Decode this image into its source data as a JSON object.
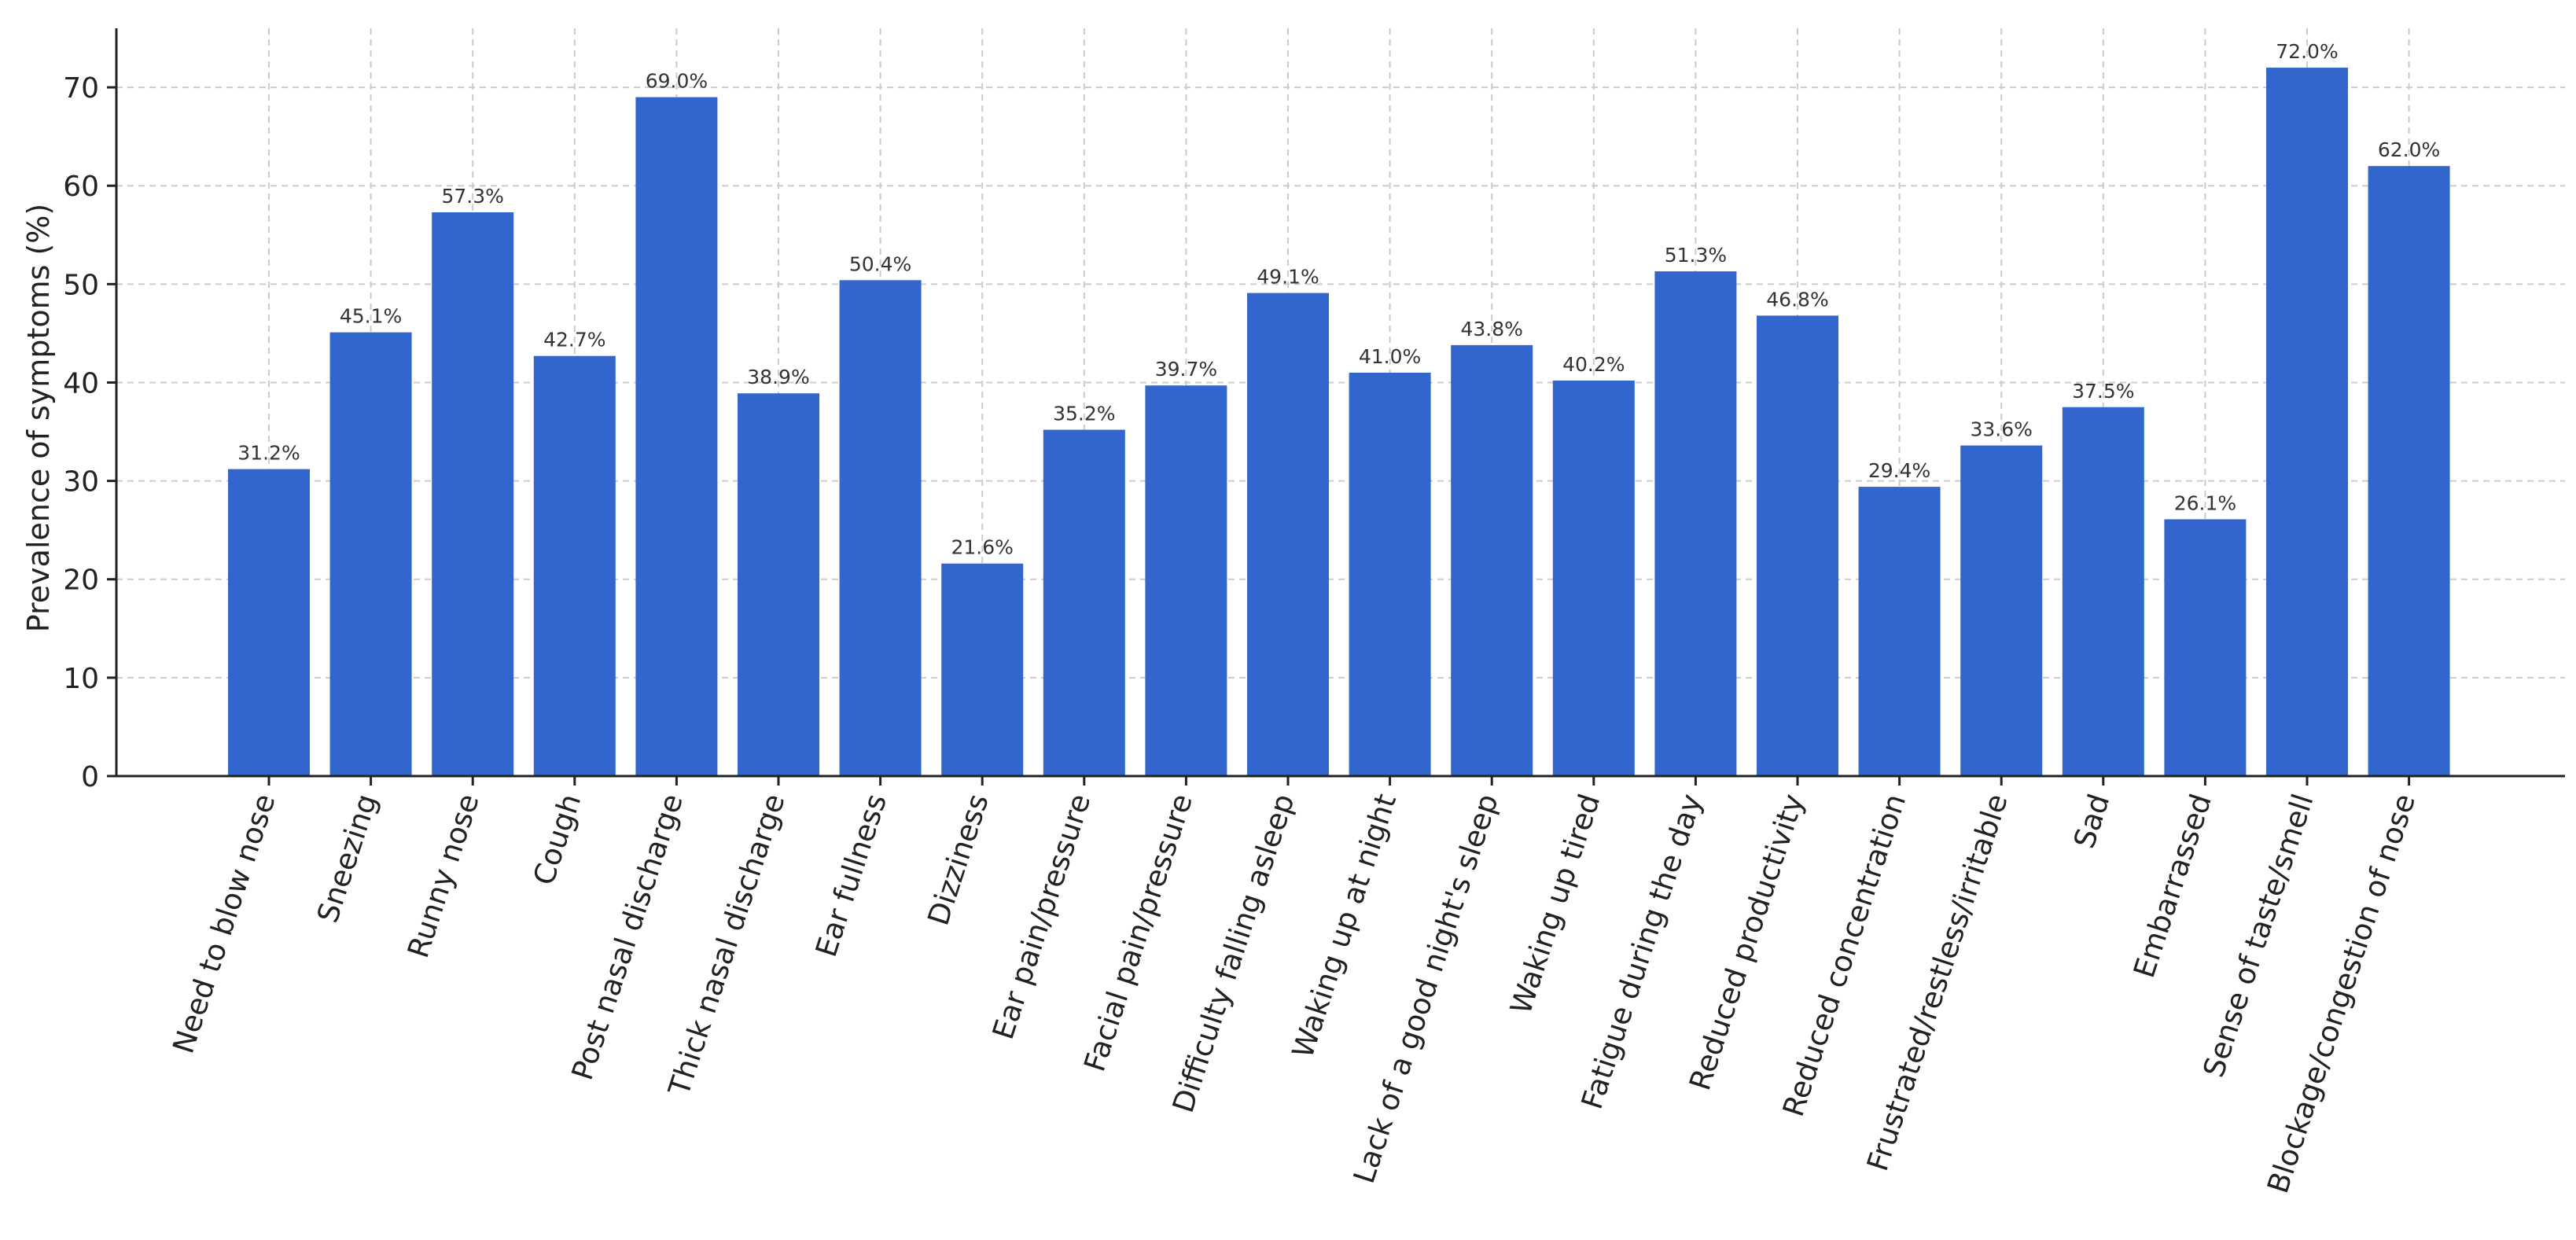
{
  "chart_data": {
    "type": "bar",
    "title": "",
    "xlabel": "",
    "ylabel": "Prevalence of symptoms (%)",
    "ylim": [
      0,
      76
    ],
    "yticks": [
      0,
      10,
      20,
      30,
      40,
      50,
      60,
      70
    ],
    "grid": true,
    "bar_color": "#3366cc",
    "categories": [
      "Need to blow nose",
      "Sneezing",
      "Runny nose",
      "Cough",
      "Post nasal discharge",
      "Thick nasal discharge",
      "Ear fullness",
      "Dizziness",
      "Ear pain/pressure",
      "Facial pain/pressure",
      "Difficulty falling asleep",
      "Waking up at night",
      "Lack of a good night's sleep",
      "Waking up tired",
      "Fatigue during the day",
      "Reduced productivity",
      "Reduced concentration",
      "Frustrated/restless/irritable",
      "Sad",
      "Embarrassed",
      "Sense of taste/smell",
      "Blockage/congestion of nose"
    ],
    "values": [
      31.2,
      45.1,
      57.3,
      42.7,
      69.0,
      38.9,
      50.4,
      21.6,
      35.2,
      39.7,
      49.1,
      41.0,
      43.8,
      40.2,
      51.3,
      46.8,
      29.4,
      33.6,
      37.5,
      26.1,
      72.0,
      62.0
    ],
    "data_labels": [
      "31.2%",
      "45.1%",
      "57.3%",
      "42.7%",
      "69.0%",
      "38.9%",
      "50.4%",
      "21.6%",
      "35.2%",
      "39.7%",
      "49.1%",
      "41.0%",
      "43.8%",
      "40.2%",
      "51.3%",
      "46.8%",
      "29.4%",
      "33.6%",
      "37.5%",
      "26.1%",
      "72.0%",
      "62.0%"
    ]
  }
}
